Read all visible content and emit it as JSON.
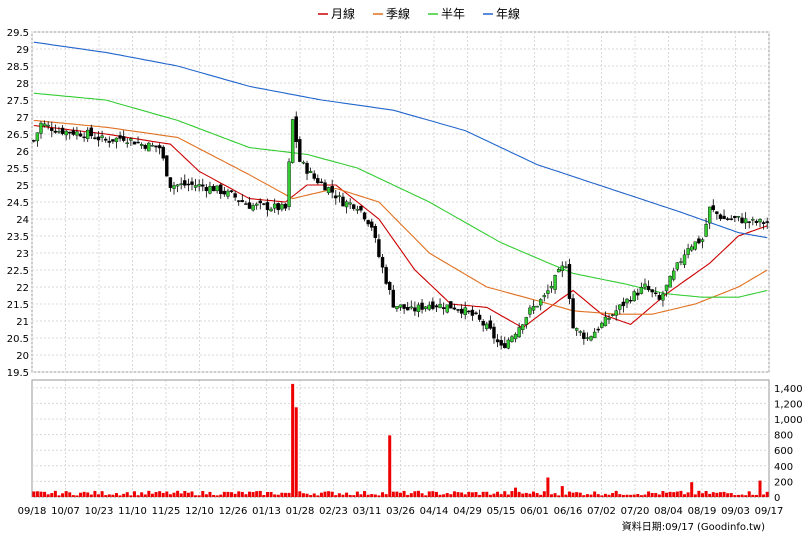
{
  "legend": [
    {
      "label": "月線",
      "color": "#cc0000"
    },
    {
      "label": "季線",
      "color": "#e07020"
    },
    {
      "label": "半年",
      "color": "#33cc33"
    },
    {
      "label": "年線",
      "color": "#2266cc"
    }
  ],
  "footer": {
    "label": "資料日期:",
    "date": "09/17",
    "source": "(Goodinfo.tw)"
  },
  "chart_data": [
    {
      "type": "candlestick",
      "ylim": [
        19.5,
        29.5
      ],
      "y_ticks": [
        "29.5",
        "29",
        "28.5",
        "28",
        "27.5",
        "27",
        "26.5",
        "26",
        "25.5",
        "25",
        "24.5",
        "24",
        "23.5",
        "23",
        "22.5",
        "22",
        "21.5",
        "21",
        "20.5",
        "20",
        "19.5"
      ],
      "x_tick_labels": [
        "09/18",
        "10/07",
        "10/23",
        "11/10",
        "11/25",
        "12/10",
        "12/26",
        "01/13",
        "01/28",
        "02/23",
        "03/11",
        "03/26",
        "04/14",
        "04/29",
        "05/15",
        "06/01",
        "06/16",
        "07/02",
        "07/20",
        "08/04",
        "08/19",
        "09/03",
        "09/17"
      ],
      "up_color": "#33cc33",
      "down_color": "#000000",
      "close_anchors": [
        [
          0,
          26.3
        ],
        [
          2,
          26.8
        ],
        [
          7,
          26.6
        ],
        [
          15,
          26.5
        ],
        [
          20,
          26.3
        ],
        [
          25,
          26.4
        ],
        [
          30,
          26.2
        ],
        [
          35,
          26.1
        ],
        [
          38,
          25.0
        ],
        [
          45,
          25.0
        ],
        [
          50,
          24.9
        ],
        [
          55,
          24.7
        ],
        [
          60,
          24.4
        ],
        [
          66,
          24.35
        ],
        [
          70,
          24.3
        ],
        [
          72,
          26.9
        ],
        [
          74,
          25.7
        ],
        [
          78,
          25.2
        ],
        [
          82,
          24.9
        ],
        [
          86,
          24.5
        ],
        [
          90,
          24.4
        ],
        [
          94,
          23.8
        ],
        [
          96,
          22.9
        ],
        [
          100,
          21.5
        ],
        [
          105,
          21.3
        ],
        [
          110,
          21.5
        ],
        [
          118,
          21.4
        ],
        [
          123,
          21.1
        ],
        [
          127,
          20.7
        ],
        [
          130,
          20.2
        ],
        [
          134,
          20.7
        ],
        [
          138,
          21.3
        ],
        [
          142,
          21.7
        ],
        [
          146,
          22.4
        ],
        [
          148,
          22.7
        ],
        [
          150,
          20.8
        ],
        [
          154,
          20.5
        ],
        [
          158,
          20.9
        ],
        [
          162,
          21.3
        ],
        [
          166,
          21.7
        ],
        [
          170,
          22.0
        ],
        [
          174,
          21.6
        ],
        [
          178,
          22.4
        ],
        [
          182,
          23.2
        ],
        [
          186,
          23.4
        ],
        [
          188,
          24.3
        ],
        [
          192,
          24.0
        ],
        [
          196,
          24.0
        ],
        [
          200,
          23.9
        ],
        [
          204,
          23.9
        ]
      ],
      "moving_averages": [
        {
          "name": "月線",
          "color": "#cc0000",
          "values": [
            [
              0,
              26.75
            ],
            [
              20,
              26.5
            ],
            [
              38,
              26.2
            ],
            [
              46,
              25.4
            ],
            [
              60,
              24.6
            ],
            [
              70,
              24.5
            ],
            [
              76,
              25.0
            ],
            [
              84,
              25.0
            ],
            [
              96,
              24.0
            ],
            [
              106,
              22.5
            ],
            [
              116,
              21.5
            ],
            [
              126,
              21.4
            ],
            [
              136,
              20.8
            ],
            [
              146,
              21.6
            ],
            [
              150,
              21.9
            ],
            [
              158,
              21.2
            ],
            [
              166,
              20.9
            ],
            [
              176,
              21.8
            ],
            [
              188,
              22.7
            ],
            [
              196,
              23.5
            ],
            [
              204,
              23.8
            ]
          ]
        },
        {
          "name": "季線",
          "color": "#e07020",
          "values": [
            [
              0,
              26.9
            ],
            [
              20,
              26.7
            ],
            [
              40,
              26.4
            ],
            [
              60,
              25.3
            ],
            [
              72,
              24.6
            ],
            [
              84,
              24.9
            ],
            [
              96,
              24.5
            ],
            [
              110,
              23.0
            ],
            [
              126,
              22.0
            ],
            [
              140,
              21.6
            ],
            [
              150,
              21.3
            ],
            [
              162,
              21.2
            ],
            [
              172,
              21.2
            ],
            [
              184,
              21.5
            ],
            [
              196,
              22.0
            ],
            [
              204,
              22.5
            ]
          ]
        },
        {
          "name": "半年",
          "color": "#33cc33",
          "values": [
            [
              0,
              27.7
            ],
            [
              20,
              27.5
            ],
            [
              40,
              26.9
            ],
            [
              60,
              26.1
            ],
            [
              76,
              25.9
            ],
            [
              90,
              25.5
            ],
            [
              110,
              24.5
            ],
            [
              130,
              23.3
            ],
            [
              150,
              22.4
            ],
            [
              164,
              22.1
            ],
            [
              176,
              21.8
            ],
            [
              186,
              21.7
            ],
            [
              196,
              21.7
            ],
            [
              204,
              21.9
            ]
          ]
        },
        {
          "name": "年線",
          "color": "#2266cc",
          "values": [
            [
              0,
              29.2
            ],
            [
              20,
              28.9
            ],
            [
              40,
              28.5
            ],
            [
              60,
              27.9
            ],
            [
              80,
              27.5
            ],
            [
              100,
              27.2
            ],
            [
              120,
              26.6
            ],
            [
              140,
              25.6
            ],
            [
              160,
              24.9
            ],
            [
              180,
              24.2
            ],
            [
              196,
              23.6
            ],
            [
              204,
              23.45
            ]
          ]
        }
      ]
    },
    {
      "type": "bar",
      "name": "volume",
      "color": "#ee0000",
      "ylim": [
        0,
        1500
      ],
      "y_ticks": [
        "1,400",
        "1,200",
        "1,000",
        "800",
        "600",
        "400",
        "200",
        "0"
      ],
      "spikes": [
        [
          72,
          1450
        ],
        [
          73,
          1150
        ],
        [
          99,
          790
        ],
        [
          134,
          120
        ],
        [
          143,
          250
        ],
        [
          147,
          140
        ],
        [
          183,
          190
        ],
        [
          202,
          210
        ]
      ]
    }
  ]
}
